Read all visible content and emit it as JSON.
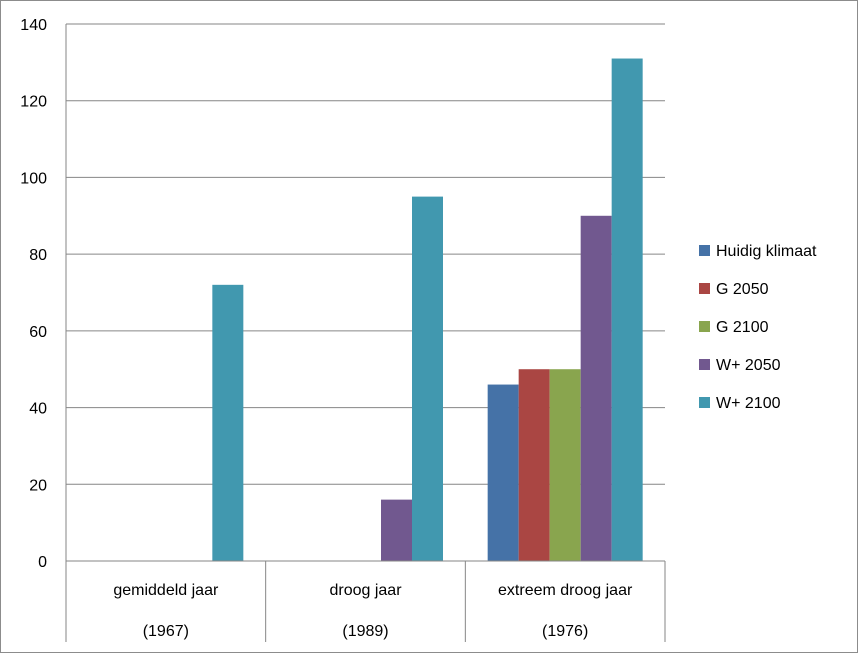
{
  "chart_data": {
    "type": "bar",
    "categories": [
      {
        "line1": "gemiddeld jaar",
        "line2": "(1967)"
      },
      {
        "line1": "droog jaar",
        "line2": "(1989)"
      },
      {
        "line1": "extreem droog jaar",
        "line2": "(1976)"
      }
    ],
    "series": [
      {
        "name": "Huidig klimaat",
        "color": "#4572A7",
        "values": [
          0,
          0,
          46
        ]
      },
      {
        "name": "G 2050",
        "color": "#AA4643",
        "values": [
          0,
          0,
          50
        ]
      },
      {
        "name": "G 2100",
        "color": "#89A54E",
        "values": [
          0,
          0,
          50
        ]
      },
      {
        "name": "W+ 2050",
        "color": "#71588F",
        "values": [
          0,
          16,
          90
        ]
      },
      {
        "name": "W+ 2100",
        "color": "#4198AF",
        "values": [
          72,
          95,
          131
        ]
      }
    ],
    "yticks": [
      "0",
      "20",
      "40",
      "60",
      "80",
      "100",
      "120",
      "140"
    ],
    "ylim": [
      0,
      140
    ],
    "grid": true,
    "legend_position": "right",
    "title": "",
    "xlabel": "",
    "ylabel": ""
  }
}
